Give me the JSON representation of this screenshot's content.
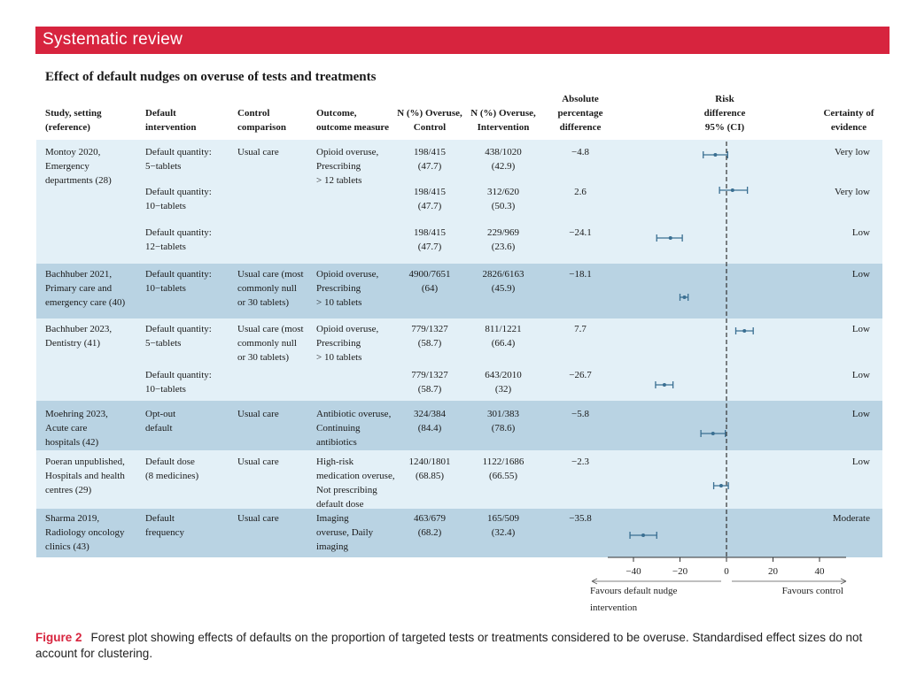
{
  "section_banner": "Systematic review",
  "figure_title": "Effect of default nudges on overuse of tests and treatments",
  "headers": {
    "study": [
      "Study, setting",
      "(reference)"
    ],
    "intervention": [
      "Default",
      "intervention"
    ],
    "control": [
      "Control",
      "comparison"
    ],
    "outcome": [
      "Outcome,",
      "outcome measure"
    ],
    "n_control": [
      "N (%) Overuse,",
      "Control"
    ],
    "n_intervention": [
      "N (%) Overuse,",
      "Intervention"
    ],
    "abs_diff": [
      "Absolute",
      "percentage",
      "difference"
    ],
    "rd": [
      "Risk",
      "difference",
      "95% (CI)"
    ],
    "certainty": [
      "Certainty of",
      "evidence"
    ]
  },
  "rows": [
    {
      "study": [
        "Montoy 2020,",
        "Emergency",
        "departments (28)"
      ],
      "intervention": [
        "Default quantity:",
        "5−tablets"
      ],
      "control": [
        "Usual care"
      ],
      "outcome": [
        "Opioid overuse,",
        "Prescribing",
        "> 12 tablets"
      ],
      "n_control": [
        "198/415",
        "(47.7)"
      ],
      "n_intervention": [
        "438/1020",
        "(42.9)"
      ],
      "abs_diff": "−4.8",
      "certainty": "Very low"
    },
    {
      "study": [],
      "intervention": [
        "Default quantity:",
        "10−tablets"
      ],
      "control": [],
      "outcome": [],
      "n_control": [
        "198/415",
        "(47.7)"
      ],
      "n_intervention": [
        "312/620",
        "(50.3)"
      ],
      "abs_diff": "2.6",
      "certainty": "Very low"
    },
    {
      "study": [],
      "intervention": [
        "Default quantity:",
        "12−tablets"
      ],
      "control": [],
      "outcome": [],
      "n_control": [
        "198/415",
        "(47.7)"
      ],
      "n_intervention": [
        "229/969",
        "(23.6)"
      ],
      "abs_diff": "−24.1",
      "certainty": "Low"
    },
    {
      "study": [
        "Bachhuber 2021,",
        "Primary care and",
        "emergency care (40)"
      ],
      "intervention": [
        "Default quantity:",
        "10−tablets"
      ],
      "control": [
        "Usual care (most",
        "commonly null",
        "or 30 tablets)"
      ],
      "outcome": [
        "Opioid overuse,",
        "Prescribing",
        "> 10 tablets"
      ],
      "n_control": [
        "4900/7651",
        "(64)"
      ],
      "n_intervention": [
        "2826/6163",
        "(45.9)"
      ],
      "abs_diff": "−18.1",
      "certainty": "Low"
    },
    {
      "study": [
        "Bachhuber 2023,",
        "Dentistry (41)"
      ],
      "intervention": [
        "Default quantity:",
        "5−tablets"
      ],
      "control": [
        "Usual care (most",
        "commonly null",
        "or 30 tablets)"
      ],
      "outcome": [
        "Opioid overuse,",
        "Prescribing",
        "> 10 tablets"
      ],
      "n_control": [
        "779/1327",
        "(58.7)"
      ],
      "n_intervention": [
        "811/1221",
        "(66.4)"
      ],
      "abs_diff": "7.7",
      "certainty": "Low"
    },
    {
      "study": [],
      "intervention": [
        "Default quantity:",
        "10−tablets"
      ],
      "control": [],
      "outcome": [],
      "n_control": [
        "779/1327",
        "(58.7)"
      ],
      "n_intervention": [
        "643/2010",
        "(32)"
      ],
      "abs_diff": "−26.7",
      "certainty": "Low"
    },
    {
      "study": [
        "Moehring 2023,",
        "Acute care",
        "hospitals (42)"
      ],
      "intervention": [
        "Opt-out",
        "default"
      ],
      "control": [
        "Usual care"
      ],
      "outcome": [
        "Antibiotic overuse,",
        "Continuing",
        "antibiotics"
      ],
      "n_control": [
        "324/384",
        "(84.4)"
      ],
      "n_intervention": [
        "301/383",
        "(78.6)"
      ],
      "abs_diff": "−5.8",
      "certainty": "Low"
    },
    {
      "study": [
        "Poeran unpublished,",
        "Hospitals and health",
        "centres (29)"
      ],
      "intervention": [
        "Default dose",
        "(8 medicines)"
      ],
      "control": [
        "Usual care"
      ],
      "outcome": [
        "High-risk",
        "medication overuse,",
        "Not prescribing",
        "default dose"
      ],
      "n_control": [
        "1240/1801",
        "(68.85)"
      ],
      "n_intervention": [
        "1122/1686",
        "(66.55)"
      ],
      "abs_diff": "−2.3",
      "certainty": "Low"
    },
    {
      "study": [
        "Sharma 2019,",
        "Radiology oncology",
        "clinics (43)"
      ],
      "intervention": [
        "Default",
        "frequency"
      ],
      "control": [
        "Usual care"
      ],
      "outcome": [
        "Imaging",
        "overuse, Daily",
        "imaging"
      ],
      "n_control": [
        "463/679",
        "(68.2)"
      ],
      "n_intervention": [
        "165/509",
        "(32.4)"
      ],
      "abs_diff": "−35.8",
      "certainty": "Moderate"
    }
  ],
  "chart_data": {
    "type": "forest",
    "x_ticks": [
      "−40",
      "−20",
      "0",
      "20",
      "40"
    ],
    "x_tick_values": [
      -40,
      -20,
      0,
      20,
      40
    ],
    "xlim": [
      -58,
      50
    ],
    "reference_line": 0,
    "estimates": [
      {
        "label": "Montoy 2020, 5−tablets",
        "value": -4.8,
        "ci": [
          -10,
          0.5
        ]
      },
      {
        "label": "Montoy 2020, 10−tablets",
        "value": 2.6,
        "ci": [
          -3,
          9
        ]
      },
      {
        "label": "Montoy 2020, 12−tablets",
        "value": -24.1,
        "ci": [
          -30,
          -19
        ]
      },
      {
        "label": "Bachhuber 2021",
        "value": -18.1,
        "ci": [
          -20,
          -16.5
        ]
      },
      {
        "label": "Bachhuber 2023, 5−tablets",
        "value": 7.7,
        "ci": [
          4,
          11.5
        ]
      },
      {
        "label": "Bachhuber 2023, 10−tablets",
        "value": -26.7,
        "ci": [
          -30.5,
          -23
        ]
      },
      {
        "label": "Moehring 2023",
        "value": -5.8,
        "ci": [
          -11,
          -0.5
        ]
      },
      {
        "label": "Poeran unpublished",
        "value": -2.3,
        "ci": [
          -5.5,
          0.8
        ]
      },
      {
        "label": "Sharma 2019",
        "value": -35.8,
        "ci": [
          -41.5,
          -30
        ]
      }
    ],
    "left_direction_label": [
      "Favours default nudge",
      "intervention"
    ],
    "right_direction_label": "Favours control"
  },
  "caption": {
    "label": "Figure 2",
    "text": "Forest plot showing effects of defaults on the proportion of targeted tests or treatments considered to be overuse. Standardised effect sizes do not account for clustering."
  },
  "colors": {
    "banner": "#d7243e",
    "band_light": "#e3f0f7",
    "band_dark": "#b9d3e3",
    "ci": "#3a6f92"
  }
}
